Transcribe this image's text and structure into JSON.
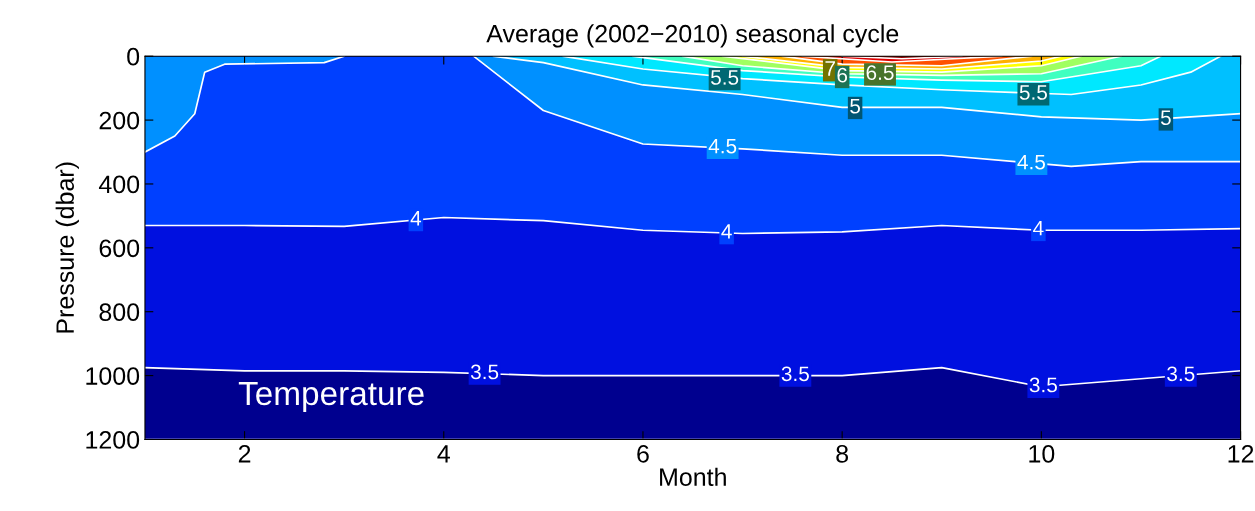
{
  "chart_data": {
    "type": "area",
    "title": "Average (2002−2010) seasonal cycle",
    "xlabel": "Month",
    "ylabel": "Pressure (dbar)",
    "annotations": [
      "Temperature",
      {
        "text": "5.5",
        "x": 6.82,
        "y": 72
      },
      {
        "text": "7",
        "x": 7.88,
        "y": 44
      },
      {
        "text": "6",
        "x": 8.0,
        "y": 65
      },
      {
        "text": "6.5",
        "x": 8.38,
        "y": 57
      },
      {
        "text": "5",
        "x": 8.13,
        "y": 162
      },
      {
        "text": "5.5",
        "x": 9.92,
        "y": 119
      },
      {
        "text": "5",
        "x": 11.25,
        "y": 198
      },
      {
        "text": "4.5",
        "x": 6.8,
        "y": 287
      },
      {
        "text": "4.5",
        "x": 9.9,
        "y": 337
      },
      {
        "text": "4",
        "x": 3.72,
        "y": 513
      },
      {
        "text": "4",
        "x": 6.84,
        "y": 554
      },
      {
        "text": "4",
        "x": 9.97,
        "y": 544
      },
      {
        "text": "3.5",
        "x": 4.41,
        "y": 994
      },
      {
        "text": "3.5",
        "x": 7.53,
        "y": 1000
      },
      {
        "text": "3.5",
        "x": 10.02,
        "y": 1035
      },
      {
        "text": "3.5",
        "x": 11.4,
        "y": 1000
      }
    ],
    "series": [
      {
        "color": "#00008f",
        "x": [
          1,
          12
        ],
        "values": [
          1200,
          1200
        ]
      },
      {
        "color": "#0010e0",
        "x": [
          1,
          2,
          3,
          4,
          5,
          6,
          7,
          8,
          9,
          10,
          11,
          12
        ],
        "values": [
          975,
          985,
          985,
          990,
          1000,
          1000,
          1000,
          1000,
          975,
          1035,
          1010,
          985
        ]
      },
      {
        "color": "#0040ff",
        "x": [
          1,
          2,
          3,
          4,
          5,
          6,
          7,
          8,
          9,
          10,
          11,
          12
        ],
        "values": [
          530,
          530,
          533,
          505,
          515,
          545,
          555,
          550,
          530,
          545,
          545,
          540
        ]
      },
      {
        "color": "#0090ff",
        "x": [
          1,
          1.3,
          1.5,
          1.6,
          1.8,
          2.8,
          3.0,
          3.6,
          4.3,
          5,
          6,
          7,
          8,
          9,
          10.3,
          11,
          12
        ],
        "values": [
          300,
          250,
          180,
          50,
          25,
          20,
          0,
          null,
          0,
          170,
          275,
          290,
          310,
          310,
          345,
          330,
          330
        ]
      },
      {
        "color": "#00c0ff",
        "x": [
          4.5,
          5,
          6,
          7,
          8,
          9,
          10,
          11,
          12
        ],
        "values": [
          0,
          20,
          90,
          120,
          160,
          160,
          190,
          200,
          180
        ]
      },
      {
        "color": "#00e8ff",
        "x": [
          5.2,
          6,
          7,
          8,
          9,
          10.3,
          11,
          11.5,
          11.8
        ],
        "values": [
          0,
          40,
          70,
          90,
          105,
          120,
          90,
          50,
          0
        ]
      },
      {
        "color": "#40ffc0",
        "x": [
          5.9,
          7,
          8,
          9,
          10,
          11,
          11.2
        ],
        "values": [
          0,
          45,
          65,
          75,
          80,
          30,
          0
        ]
      },
      {
        "color": "#a0ff60",
        "x": [
          6.4,
          7,
          8,
          9,
          10,
          10.8
        ],
        "values": [
          0,
          30,
          55,
          60,
          55,
          0
        ]
      },
      {
        "color": "#ffff00",
        "x": [
          6.8,
          8,
          9,
          10,
          10.4
        ],
        "values": [
          0,
          45,
          50,
          30,
          0
        ]
      },
      {
        "color": "#ffb000",
        "x": [
          7.0,
          8,
          9,
          10,
          10.2
        ],
        "values": [
          0,
          35,
          40,
          15,
          0
        ]
      },
      {
        "color": "#ff5000",
        "x": [
          7.4,
          8,
          9,
          9.9
        ],
        "values": [
          0,
          25,
          30,
          0
        ]
      },
      {
        "color": "#e00000",
        "x": [
          7.6,
          8.5,
          9.6
        ],
        "values": [
          0,
          18,
          0
        ]
      },
      {
        "color": "#8f0000",
        "x": [
          8.0,
          8.6,
          9.2
        ],
        "values": [
          0,
          8,
          0
        ]
      }
    ],
    "xlim": [
      1,
      12
    ],
    "xticks": [
      2,
      4,
      6,
      8,
      10,
      12
    ],
    "ylim": [
      1200,
      0
    ],
    "yticks": [
      0,
      200,
      400,
      600,
      800,
      1000,
      1200
    ],
    "grid": false
  }
}
